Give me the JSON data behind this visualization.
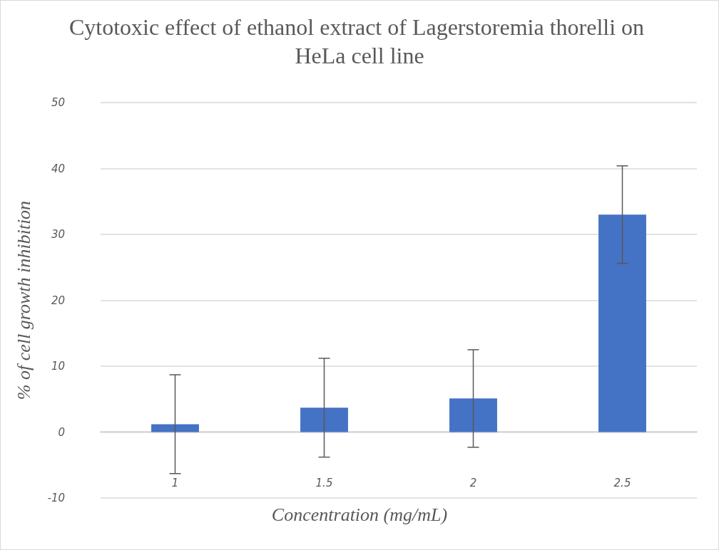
{
  "chart_data": {
    "type": "bar",
    "title": "Cytotoxic effect of ethanol extract of Lagerstoremia thorelli on HeLa cell line",
    "xlabel": "Concentration (mg/mL)",
    "ylabel": "% of cell growth inhibition",
    "categories": [
      "1",
      "1.5",
      "2",
      "2.5"
    ],
    "values": [
      1.2,
      3.7,
      5.1,
      33.0
    ],
    "errors": [
      7.5,
      7.5,
      7.4,
      7.4
    ],
    "color": "#4472c4",
    "ylim": [
      -10,
      50
    ],
    "yticks": [
      -10,
      0,
      10,
      20,
      30,
      40,
      50
    ],
    "grid": "y"
  }
}
